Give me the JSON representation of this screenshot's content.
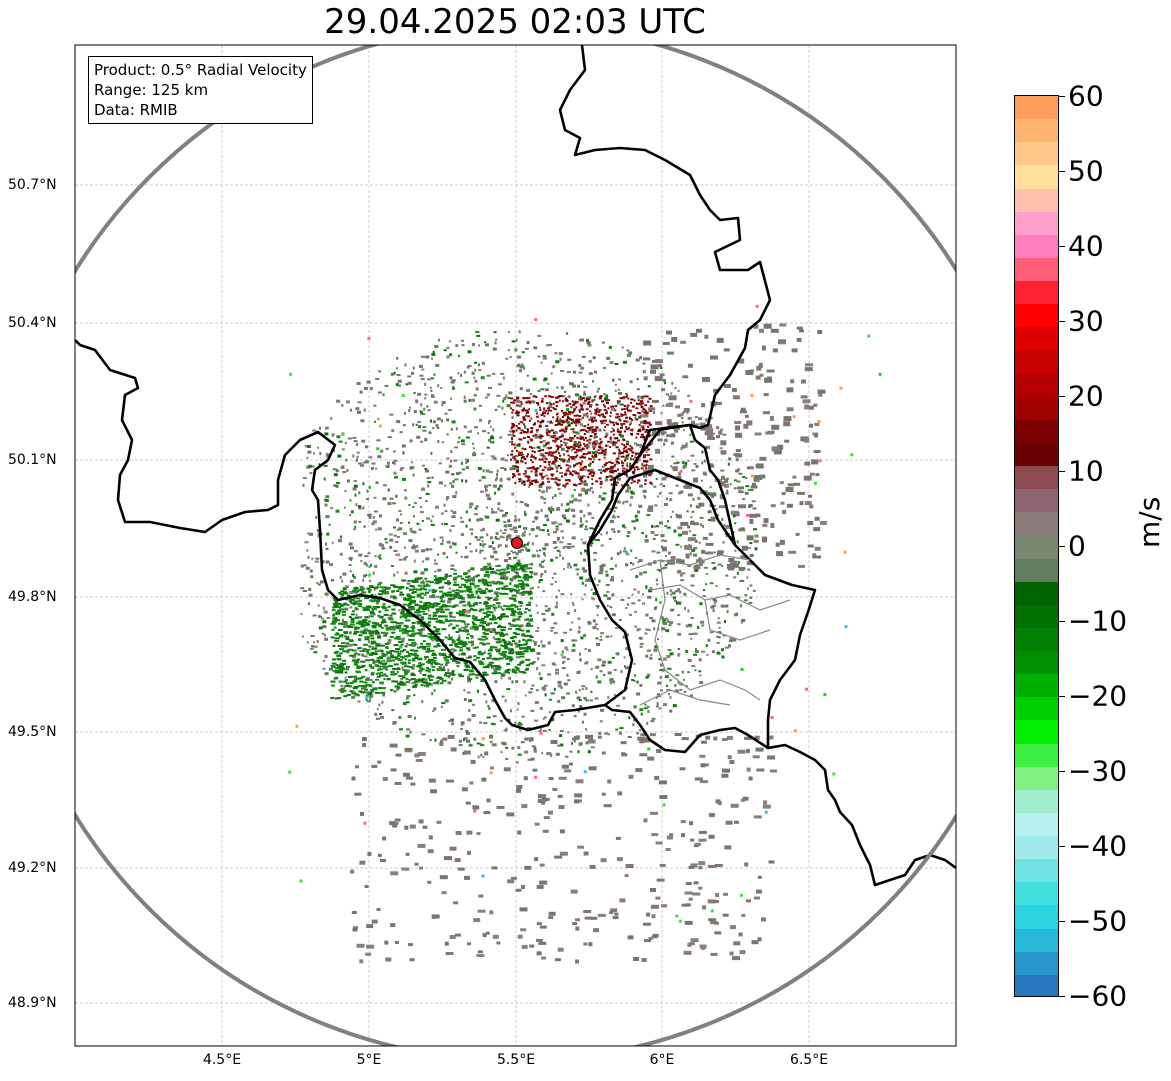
{
  "title": "29.04.2025 02:03 UTC",
  "info": {
    "product": "Product: 0.5° Radial Velocity",
    "range": "Range: 125 km",
    "data": "Data: RMIB"
  },
  "lat_labels": [
    "50.7°N",
    "50.4°N",
    "50.1°N",
    "49.8°N",
    "49.5°N",
    "49.2°N",
    "48.9°N"
  ],
  "lon_labels": [
    "4.5°E",
    "5°E",
    "5.5°E",
    "6°E",
    "6.5°E"
  ],
  "colorbar": {
    "unit": "m/s",
    "ticks": [
      "60",
      "50",
      "40",
      "30",
      "20",
      "10",
      "0",
      "−10",
      "−20",
      "−30",
      "−40",
      "−50",
      "−60"
    ],
    "range": [
      -60,
      60
    ],
    "colors_top_to_bottom": [
      "#ff9e5c",
      "#ffb56e",
      "#ffc888",
      "#ffe09a",
      "#ffc0b0",
      "#ff9ec8",
      "#ff7ec0",
      "#ff5c78",
      "#ff2030",
      "#ff0000",
      "#e00000",
      "#c80000",
      "#b40000",
      "#a00000",
      "#7e0000",
      "#6a0000",
      "#8a4a50",
      "#8c6470",
      "#8a7a7a",
      "#7a8870",
      "#5e7e5e",
      "#006400",
      "#007000",
      "#008000",
      "#009000",
      "#00b000",
      "#00d000",
      "#00ee00",
      "#40f040",
      "#80f080",
      "#a0f0d0",
      "#b8f0f0",
      "#a0eaea",
      "#70e4e4",
      "#40e0e0",
      "#2ad4e0",
      "#28b8d8",
      "#2898cc",
      "#2878c0"
    ]
  },
  "radar_site": {
    "lon": 5.505,
    "lat": 49.914,
    "color": "#e31a1c"
  },
  "map_extent": {
    "lon": [
      4.02,
      7.0
    ],
    "lat": [
      48.8,
      51.1
    ]
  },
  "colors": {
    "border": "#000000",
    "range_ring": "#808080",
    "grid": "#bbbbbb"
  }
}
